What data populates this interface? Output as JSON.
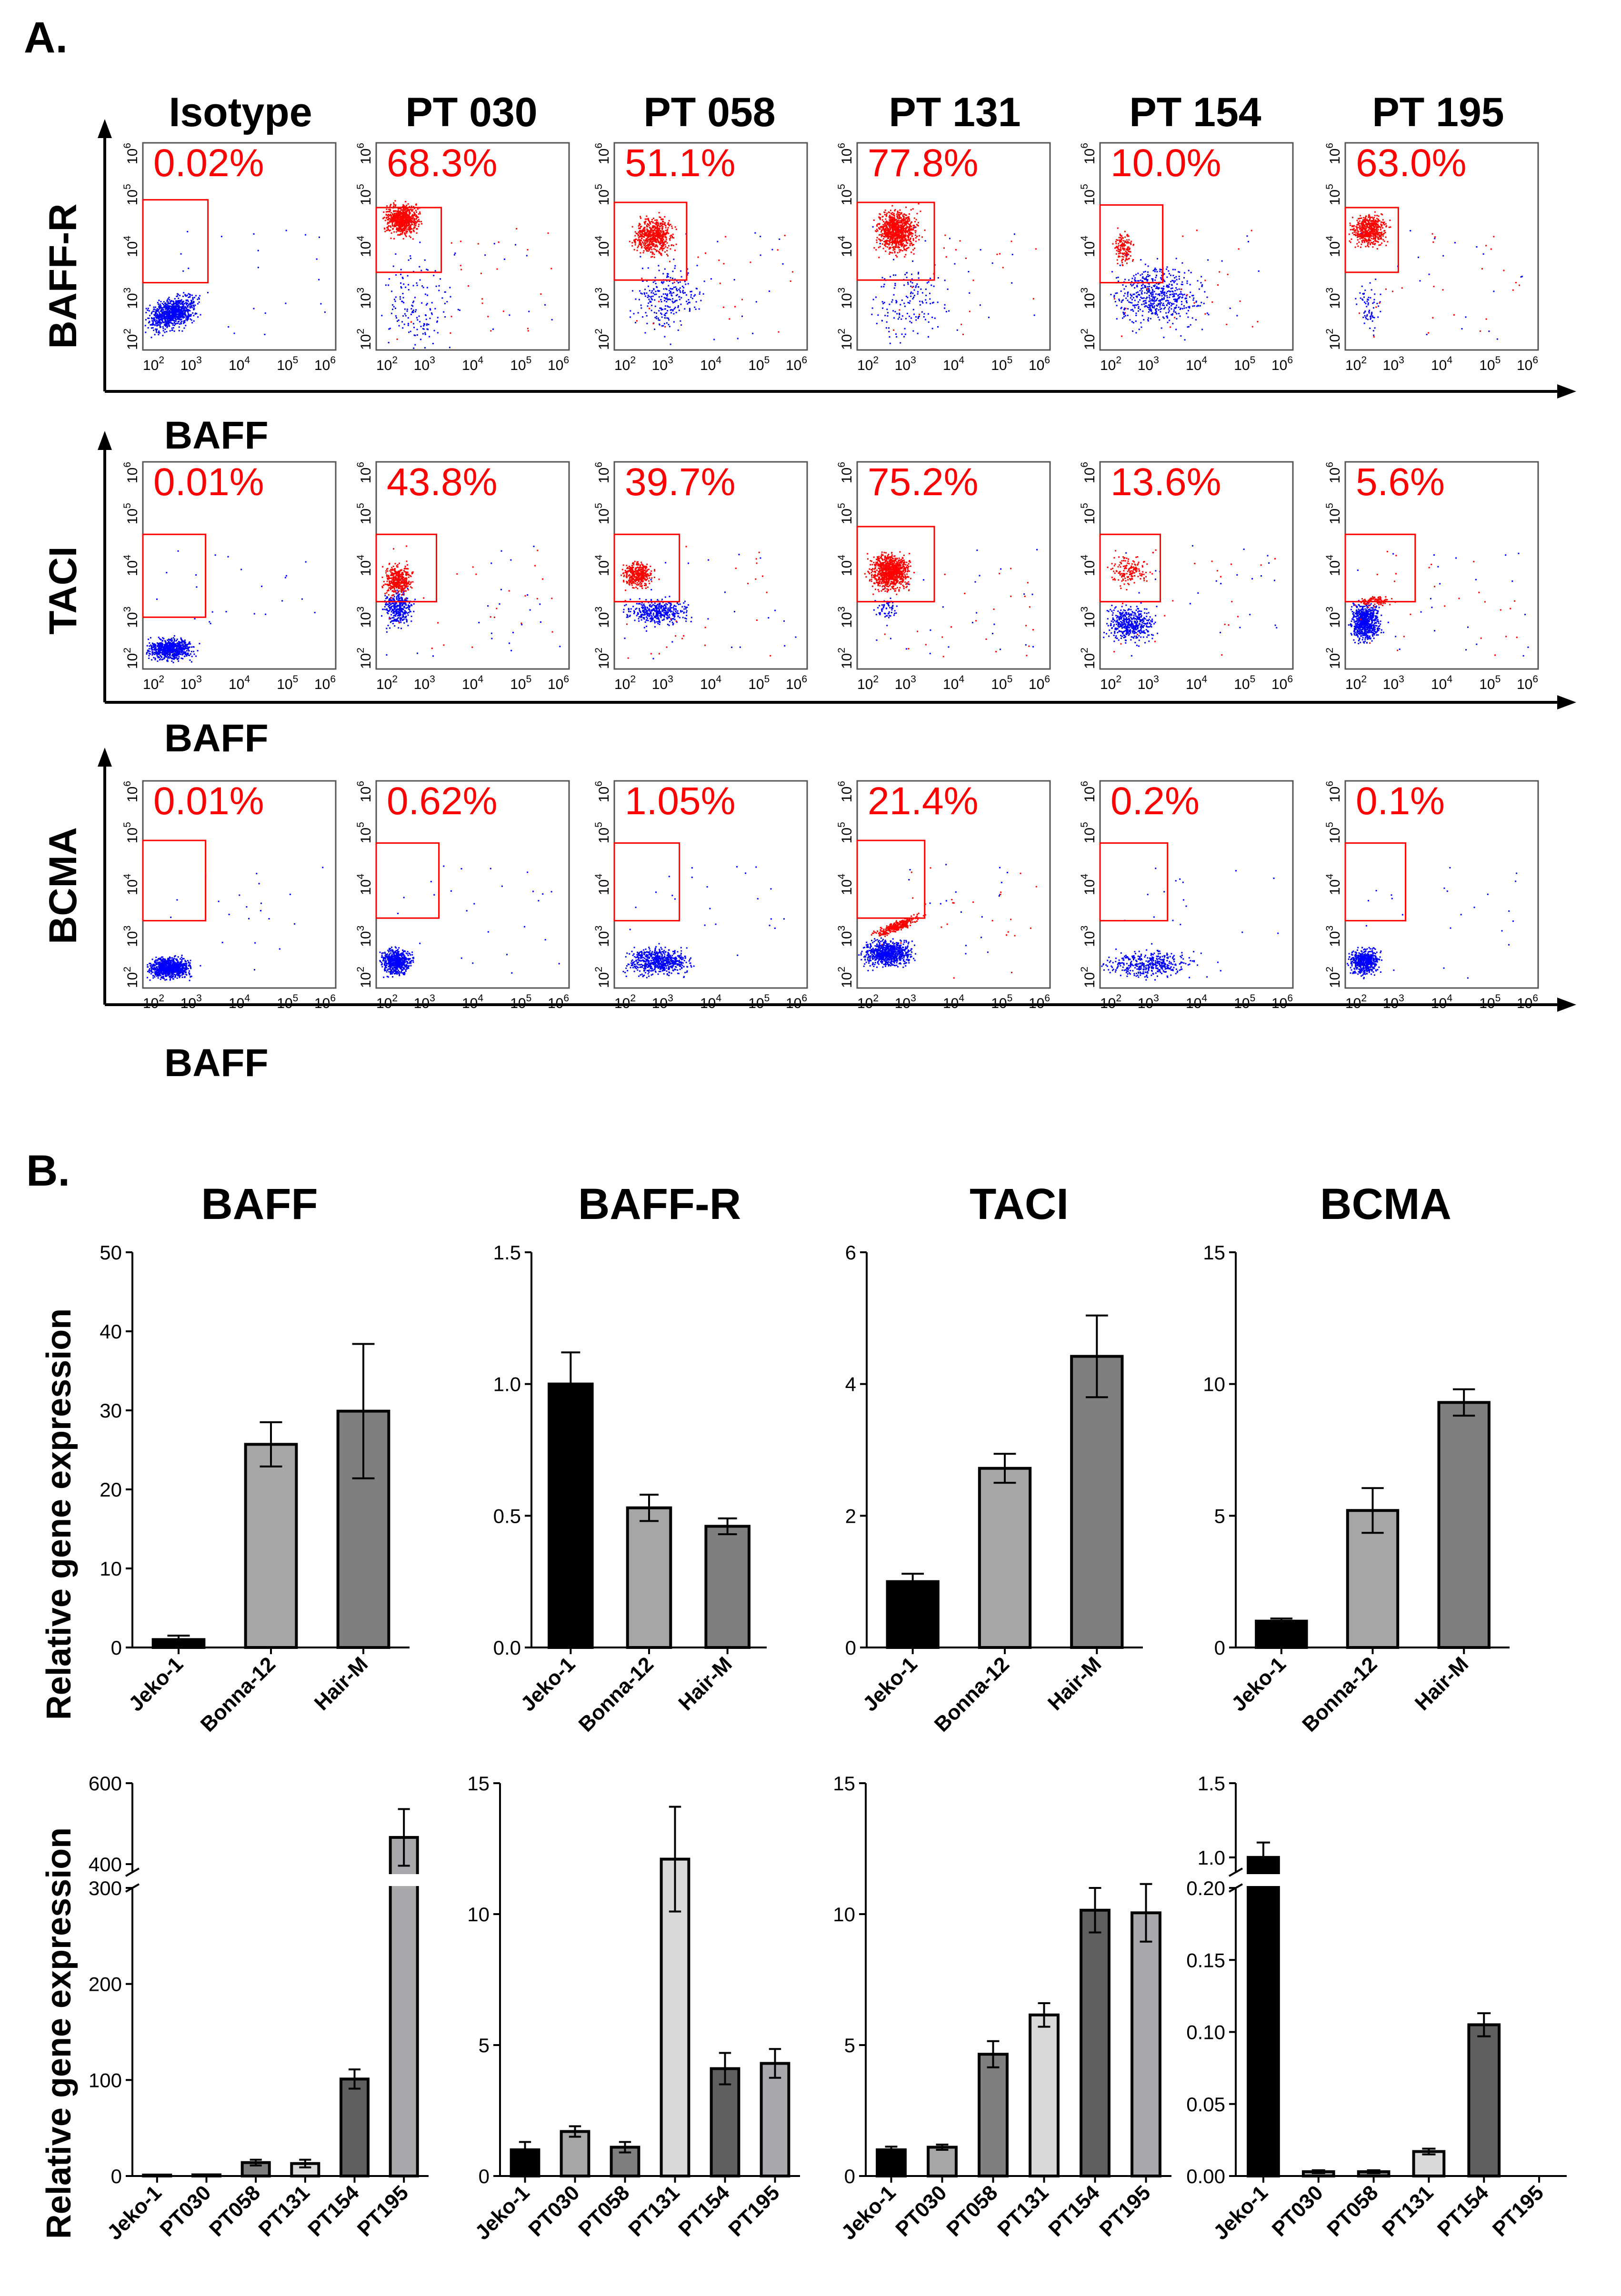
{
  "panel_a": {
    "label": "A.",
    "columns": [
      "Isotype",
      "PT 030",
      "PT 058",
      "PT 131",
      "PT 154",
      "PT 195"
    ],
    "x_axis_label": "BAFF",
    "axis_ticks": [
      "10",
      "10",
      "10",
      "10",
      "10"
    ],
    "axis_tick_exponents": [
      "2",
      "3",
      "4",
      "5",
      "6"
    ],
    "gate_color": "#ff0000",
    "positive_event_color": "#ff0000",
    "negative_event_color": "#0000ff",
    "rows": [
      {
        "receptor": "BAFF-R",
        "percents": [
          "0.02%",
          "68.3%",
          "51.1%",
          "77.8%",
          "10.0%",
          "63.0%"
        ]
      },
      {
        "receptor": "TACI",
        "percents": [
          "0.01%",
          "43.8%",
          "39.7%",
          "75.2%",
          "13.6%",
          "5.6%"
        ]
      },
      {
        "receptor": "BCMA",
        "percents": [
          "0.01%",
          "0.62%",
          "1.05%",
          "21.4%",
          "0.2%",
          "0.1%"
        ]
      }
    ]
  },
  "panel_b": {
    "label": "B.",
    "ylabel": "Relative gene expression",
    "bar_stroke_color": "#000000",
    "palette": {
      "Jeko-1": "#000000",
      "Bonna-12": "#a6a6a6",
      "Hair-M": "#7f7f7f",
      "PT030": "#a6a6a6",
      "PT058": "#7f7f7f",
      "PT131": "#d9d9d9",
      "PT154": "#5f5f5f",
      "PT195": "#a9a9ab"
    }
  },
  "chart_data": [
    {
      "type": "bar",
      "title": "BAFF",
      "ylabel": "Relative gene expression",
      "categories": [
        "Jeko-1",
        "Bonna-12",
        "Hair-M"
      ],
      "values": [
        1.0,
        25.7,
        29.9
      ],
      "errors": [
        0.5,
        2.8,
        8.5
      ],
      "ylim": [
        0,
        50
      ],
      "yticks": [
        0,
        10,
        20,
        30,
        40,
        50
      ],
      "ytick_labels": [
        "0",
        "10",
        "20",
        "30",
        "40",
        "50"
      ]
    },
    {
      "type": "bar",
      "title": "BAFF-R",
      "ylabel": "",
      "categories": [
        "Jeko-1",
        "Bonna-12",
        "Hair-M"
      ],
      "values": [
        1.0,
        0.53,
        0.46
      ],
      "errors": [
        0.12,
        0.05,
        0.03
      ],
      "ylim": [
        0,
        1.5
      ],
      "yticks": [
        0,
        0.5,
        1.0,
        1.5
      ],
      "ytick_labels": [
        "0.0",
        "0.5",
        "1.0",
        "1.5"
      ]
    },
    {
      "type": "bar",
      "title": "TACI",
      "ylabel": "",
      "categories": [
        "Jeko-1",
        "Bonna-12",
        "Hair-M"
      ],
      "values": [
        1.0,
        2.72,
        4.42
      ],
      "errors": [
        0.12,
        0.22,
        0.62
      ],
      "ylim": [
        0,
        6
      ],
      "yticks": [
        0,
        2,
        4,
        6
      ],
      "ytick_labels": [
        "0",
        "2",
        "4",
        "6"
      ]
    },
    {
      "type": "bar",
      "title": "BCMA",
      "ylabel": "",
      "categories": [
        "Jeko-1",
        "Bonna-12",
        "Hair-M"
      ],
      "values": [
        1.0,
        5.2,
        9.3
      ],
      "errors": [
        0.1,
        0.85,
        0.5
      ],
      "ylim": [
        0,
        15
      ],
      "yticks": [
        0,
        5,
        10,
        15
      ],
      "ytick_labels": [
        "0",
        "5",
        "10",
        "15"
      ]
    },
    {
      "type": "bar",
      "title": "",
      "ylabel": "Relative gene expression",
      "categories": [
        "Jeko-1",
        "PT030",
        "PT058",
        "PT131",
        "PT154",
        "PT195"
      ],
      "values": [
        1.0,
        1.2,
        14.0,
        13.0,
        101.0,
        466.0
      ],
      "errors": [
        0.3,
        0.3,
        3.0,
        4.0,
        10.0,
        70.0
      ],
      "axis_break": {
        "lower": [
          0,
          300
        ],
        "upper": [
          380,
          600
        ]
      },
      "yticks": [
        0,
        100,
        200,
        300,
        400,
        600
      ],
      "ytick_labels": [
        "0",
        "100",
        "200",
        "300",
        "400",
        "600"
      ]
    },
    {
      "type": "bar",
      "title": "",
      "ylabel": "",
      "categories": [
        "Jeko-1",
        "PT030",
        "PT058",
        "PT131",
        "PT154",
        "PT195"
      ],
      "values": [
        1.0,
        1.7,
        1.1,
        12.1,
        4.1,
        4.3
      ],
      "errors": [
        0.3,
        0.2,
        0.2,
        2.0,
        0.6,
        0.55
      ],
      "ylim": [
        0,
        15
      ],
      "yticks": [
        0,
        5,
        10,
        15
      ],
      "ytick_labels": [
        "0",
        "5",
        "10",
        "15"
      ]
    },
    {
      "type": "bar",
      "title": "",
      "ylabel": "",
      "categories": [
        "Jeko-1",
        "PT030",
        "PT058",
        "PT131",
        "PT154",
        "PT195"
      ],
      "values": [
        1.0,
        1.1,
        4.65,
        6.15,
        10.15,
        10.05
      ],
      "errors": [
        0.12,
        0.1,
        0.5,
        0.45,
        0.85,
        1.1
      ],
      "ylim": [
        0,
        15
      ],
      "yticks": [
        0,
        5,
        10,
        15
      ],
      "ytick_labels": [
        "0",
        "5",
        "10",
        "15"
      ]
    },
    {
      "type": "bar",
      "title": "",
      "ylabel": "",
      "categories": [
        "Jeko-1",
        "PT030",
        "PT058",
        "PT131",
        "PT154",
        "PT195"
      ],
      "values": [
        1.0,
        0.003,
        0.003,
        0.017,
        0.105,
        0.0
      ],
      "errors": [
        0.1,
        0.001,
        0.001,
        0.002,
        0.008,
        0.0
      ],
      "axis_break": {
        "lower": [
          0,
          0.2
        ],
        "upper": [
          0.9,
          1.5
        ]
      },
      "yticks": [
        0,
        0.05,
        0.1,
        0.15,
        0.2,
        1.0,
        1.5
      ],
      "ytick_labels": [
        "0.00",
        "0.05",
        "0.10",
        "0.15",
        "0.20",
        "1.0",
        "1.5"
      ]
    }
  ]
}
